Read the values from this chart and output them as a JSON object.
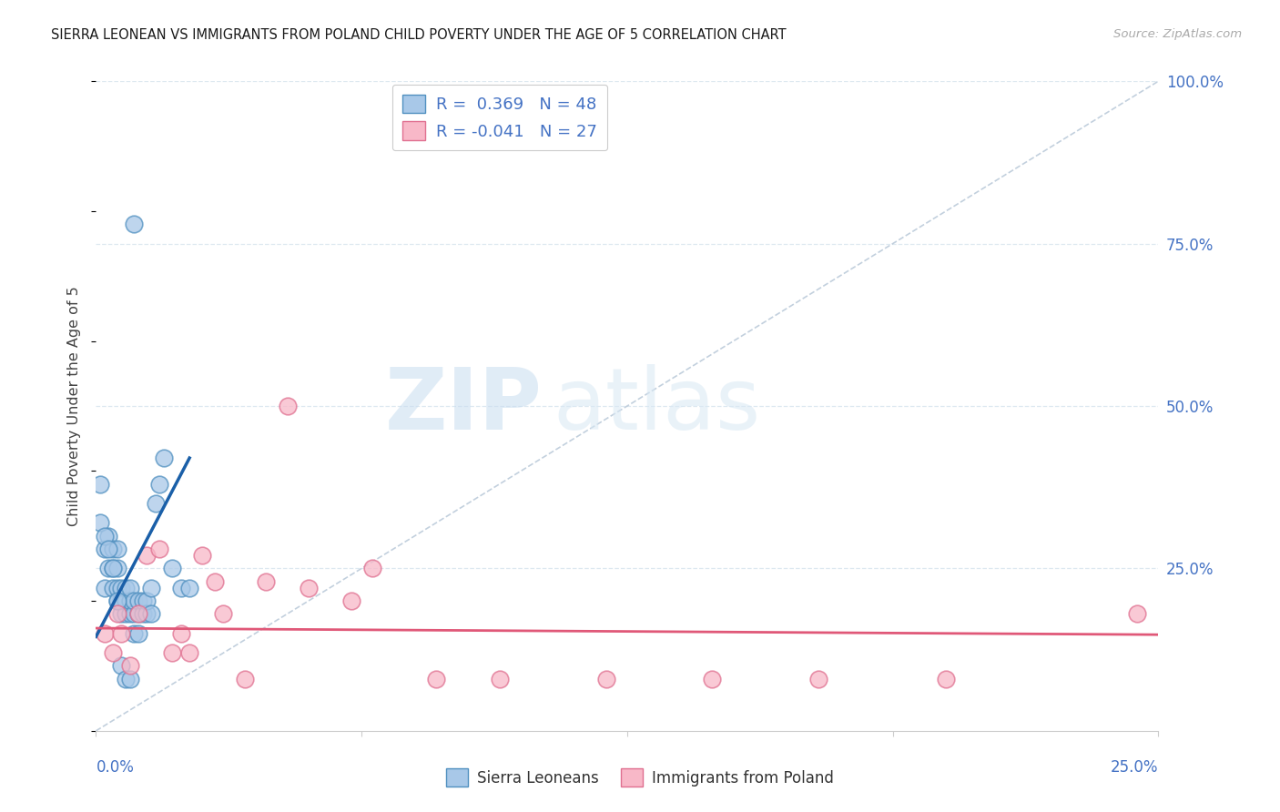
{
  "title": "SIERRA LEONEAN VS IMMIGRANTS FROM POLAND CHILD POVERTY UNDER THE AGE OF 5 CORRELATION CHART",
  "source": "Source: ZipAtlas.com",
  "ylabel": "Child Poverty Under the Age of 5",
  "xlim": [
    0.0,
    0.25
  ],
  "ylim": [
    0.0,
    1.0
  ],
  "ytick_positions": [
    0.0,
    0.25,
    0.5,
    0.75,
    1.0
  ],
  "ytick_labels_right": [
    "",
    "25.0%",
    "50.0%",
    "75.0%",
    "100.0%"
  ],
  "watermark_zip": "ZIP",
  "watermark_atlas": "atlas",
  "bg_color": "#ffffff",
  "blue_scatter_color_face": "#a8c8e8",
  "blue_scatter_color_edge": "#5090c0",
  "pink_scatter_color_face": "#f8b8c8",
  "pink_scatter_color_edge": "#e07090",
  "blue_line_color": "#1a5fa8",
  "pink_line_color": "#e05878",
  "diag_line_color": "#b8c8d8",
  "grid_color": "#dde8f0",
  "title_color": "#1a1a1a",
  "axis_label_color": "#4472c4",
  "right_tick_color": "#4472c4",
  "legend_label_color": "#4472c4",
  "blue_scatter_x": [
    0.002,
    0.002,
    0.003,
    0.003,
    0.004,
    0.004,
    0.004,
    0.005,
    0.005,
    0.005,
    0.005,
    0.006,
    0.006,
    0.006,
    0.007,
    0.007,
    0.007,
    0.008,
    0.008,
    0.008,
    0.009,
    0.009,
    0.009,
    0.01,
    0.01,
    0.01,
    0.011,
    0.011,
    0.012,
    0.012,
    0.013,
    0.013,
    0.014,
    0.015,
    0.016,
    0.018,
    0.02,
    0.022,
    0.001,
    0.001,
    0.002,
    0.003,
    0.004,
    0.005,
    0.006,
    0.007,
    0.008,
    0.009
  ],
  "blue_scatter_y": [
    0.22,
    0.28,
    0.25,
    0.3,
    0.22,
    0.25,
    0.28,
    0.2,
    0.22,
    0.25,
    0.28,
    0.18,
    0.2,
    0.22,
    0.18,
    0.2,
    0.22,
    0.18,
    0.2,
    0.22,
    0.15,
    0.18,
    0.2,
    0.15,
    0.18,
    0.2,
    0.18,
    0.2,
    0.18,
    0.2,
    0.18,
    0.22,
    0.35,
    0.38,
    0.42,
    0.25,
    0.22,
    0.22,
    0.32,
    0.38,
    0.3,
    0.28,
    0.25,
    0.2,
    0.1,
    0.08,
    0.08,
    0.78
  ],
  "pink_scatter_x": [
    0.002,
    0.004,
    0.005,
    0.006,
    0.008,
    0.01,
    0.012,
    0.015,
    0.018,
    0.02,
    0.022,
    0.025,
    0.028,
    0.03,
    0.035,
    0.04,
    0.045,
    0.05,
    0.06,
    0.065,
    0.08,
    0.095,
    0.12,
    0.145,
    0.17,
    0.2,
    0.245
  ],
  "pink_scatter_y": [
    0.15,
    0.12,
    0.18,
    0.15,
    0.1,
    0.18,
    0.27,
    0.28,
    0.12,
    0.15,
    0.12,
    0.27,
    0.23,
    0.18,
    0.08,
    0.23,
    0.5,
    0.22,
    0.2,
    0.25,
    0.08,
    0.08,
    0.08,
    0.08,
    0.08,
    0.08,
    0.18
  ],
  "blue_line_x": [
    0.0,
    0.022
  ],
  "blue_line_y": [
    0.145,
    0.42
  ],
  "pink_line_x": [
    0.0,
    0.25
  ],
  "pink_line_y": [
    0.158,
    0.148
  ],
  "diag_line_x": [
    0.0,
    0.25
  ],
  "diag_line_y": [
    0.0,
    1.0
  ],
  "legend1_label1": "R =  0.369   N = 48",
  "legend1_label2": "R = -0.041   N = 27",
  "legend2_label1": "Sierra Leoneans",
  "legend2_label2": "Immigrants from Poland"
}
